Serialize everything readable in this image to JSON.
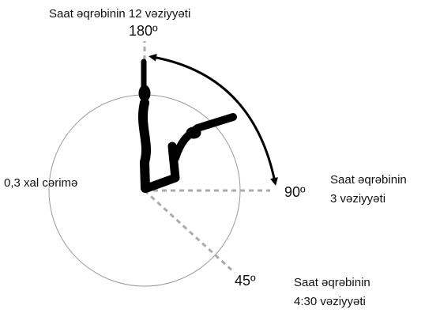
{
  "labels": {
    "top_caption": "Saat əqrəbinin 12 vəziyyəti",
    "angle_180": "180º",
    "penalty": "0,3 xal cərimə",
    "angle_90": "90º",
    "right_caption": [
      "Saat əqrəbinin",
      "3 vəziyyəti"
    ],
    "angle_45": "45º",
    "bottom_caption": [
      "Saat əqrəbinin",
      "4:30 vəziyyəti"
    ]
  }
}
